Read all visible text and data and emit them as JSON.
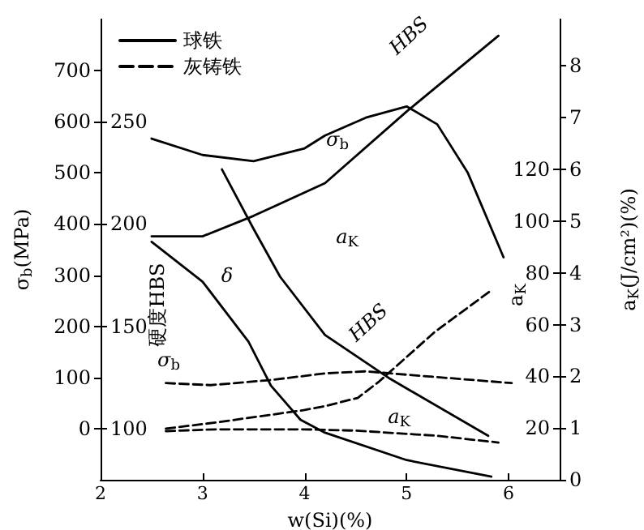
{
  "chart_data": [
    {
      "type": "line",
      "xlabel": "w(Si)(%)",
      "ylabel": "σ$_{b}$(MPa)",
      "y2label": "a$_{K}$(J/cm²)(%)",
      "xlim": [
        2,
        6.5
      ],
      "xticks": [
        2,
        3,
        4,
        5,
        6
      ],
      "ylim": [
        -100,
        800
      ],
      "yticks": [
        0,
        100,
        200,
        300,
        400,
        500,
        600,
        700
      ],
      "y2lim": [
        0,
        8.9
      ],
      "y2ticks": [
        0,
        1,
        2,
        3,
        4,
        5,
        6,
        7,
        8
      ],
      "grid": false,
      "legend": "top left",
      "marker": "none",
      "series": [
        {
          "name": "球铁",
          "color": "#000000",
          "line_style": "solid",
          "x": [
            2.5,
            3.0,
            3.5,
            4.0,
            4.2,
            4.6,
            5.0,
            5.3,
            5.6,
            5.95
          ],
          "values": [
            567,
            535,
            523,
            548,
            573,
            608,
            630,
            595,
            500,
            335
          ]
        },
        {
          "color": "#000000",
          "line_style": "solid",
          "axis": "y2",
          "x": [
            2.5,
            3.0,
            3.45,
            3.67,
            3.96,
            4.2,
            5.0,
            5.83
          ],
          "values": [
            4.6,
            3.83,
            2.67,
            1.82,
            1.16,
            0.91,
            0.38,
            0.06
          ]
        },
        {
          "name": "灰铸铁",
          "color": "#000000",
          "line_style": "dashed",
          "x": [
            2.64,
            3.08,
            3.67,
            4.2,
            4.6,
            4.84,
            6.03
          ],
          "values": [
            89,
            85,
            95,
            108,
            112,
            108,
            89
          ]
        }
      ],
      "annotations": [
        "σ$_{b}$",
        "δ",
        "σ$_{b}$"
      ]
    },
    {
      "type": "line",
      "ylabel": "硬度HBS",
      "y2label": "a$_{K}$",
      "tick_labels": "y",
      "xlim": [
        2,
        6.5
      ],
      "ylim": [
        75,
        300
      ],
      "yticks": [
        100,
        150,
        200,
        250
      ],
      "y2lim": [
        0,
        178
      ],
      "y2ticks": [
        20,
        40,
        60,
        80,
        100,
        120
      ],
      "grid": false,
      "marker": "none",
      "series": [
        {
          "color": "#000000",
          "line_style": "solid",
          "x": [
            2.5,
            3.0,
            3.5,
            4.2,
            5.0,
            5.9
          ],
          "values": [
            194,
            194,
            204,
            220,
            255,
            292
          ]
        },
        {
          "color": "#000000",
          "line_style": "solid",
          "axis": "y2",
          "x": [
            3.19,
            3.5,
            3.76,
            4.2,
            4.84,
            5.8
          ],
          "values": [
            120,
            97,
            78.5,
            56,
            39,
            17
          ]
        },
        {
          "color": "#000000",
          "line_style": "dashed",
          "x": [
            2.64,
            3.13,
            3.99,
            4.2,
            4.52,
            4.73,
            5.27,
            5.84
          ],
          "values": [
            100,
            103,
            109,
            111,
            115,
            123,
            147,
            168
          ]
        },
        {
          "color": "#000000",
          "line_style": "dashed",
          "axis": "y2",
          "x": [
            2.64,
            3.13,
            3.99,
            4.5,
            5.3,
            5.9
          ],
          "values": [
            18.8,
            19.5,
            19.5,
            19,
            17,
            14.4
          ]
        }
      ],
      "annotations": [
        "HBS",
        "a$_{K}$",
        "HBS",
        "a$_{K}$"
      ]
    }
  ]
}
